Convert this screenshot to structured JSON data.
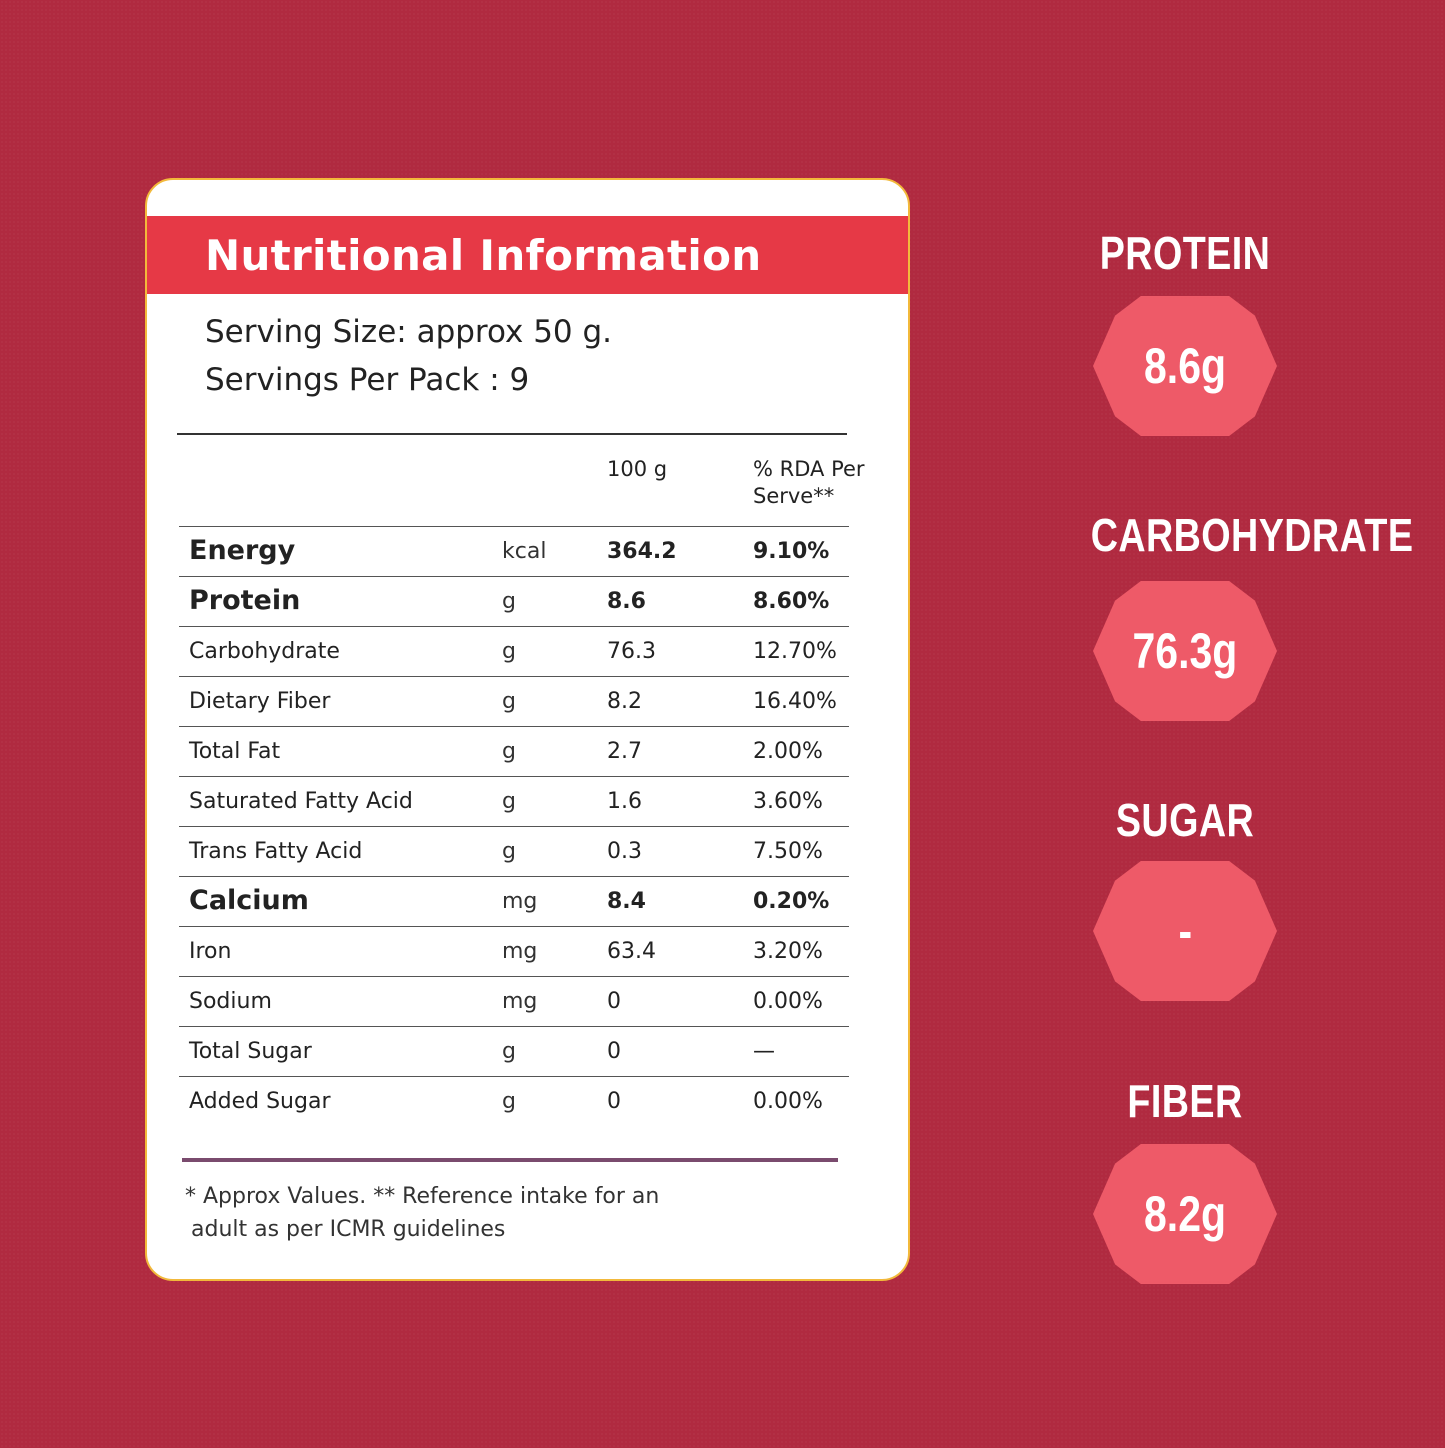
{
  "card": {
    "title": "Nutritional Information",
    "serving_size": "Serving Size: approx 50 g.",
    "servings_per_pack": "Servings Per Pack : 9",
    "col_per_100": "100 g",
    "col_rda_line1": "% RDA Per",
    "col_rda_line2": "Serve**",
    "rows": [
      {
        "name": "Energy",
        "unit": "kcal",
        "value": "364.2",
        "rda": "9.10%"
      },
      {
        "name": "Protein",
        "unit": "g",
        "value": "8.6",
        "rda": "8.60%"
      },
      {
        "name": "Carbohydrate",
        "unit": "g",
        "value": "76.3",
        "rda": "12.70%"
      },
      {
        "name": "Dietary Fiber",
        "unit": "g",
        "value": "8.2",
        "rda": "16.40%"
      },
      {
        "name": "Total Fat",
        "unit": "g",
        "value": "2.7",
        "rda": "2.00%"
      },
      {
        "name": "Saturated Fatty Acid",
        "unit": "g",
        "value": "1.6",
        "rda": "3.60%"
      },
      {
        "name": "Trans Fatty Acid",
        "unit": "g",
        "value": "0.3",
        "rda": "7.50%"
      },
      {
        "name": "Calcium",
        "unit": "mg",
        "value": "8.4",
        "rda": "0.20%"
      },
      {
        "name": "Iron",
        "unit": "mg",
        "value": "63.4",
        "rda": "3.20%"
      },
      {
        "name": "Sodium",
        "unit": "mg",
        "value": "0",
        "rda": "0.00%"
      },
      {
        "name": "Total Sugar",
        "unit": "g",
        "value": "0",
        "rda": "—"
      },
      {
        "name": "Added Sugar",
        "unit": "g",
        "value": "0",
        "rda": "0.00%"
      }
    ],
    "footnote_line1": "* Approx Values. ** Reference intake for an",
    "footnote_line2": "adult as per ICMR guidelines"
  },
  "highlights": [
    {
      "label": "PROTEIN",
      "value": "8.6g"
    },
    {
      "label": "CARBOHYDRATE",
      "value": "76.3g"
    },
    {
      "label": "SUGAR",
      "value": "-"
    },
    {
      "label": "FIBER",
      "value": "8.2g"
    }
  ],
  "colors": {
    "background": "#b02a40",
    "header": "#e63946",
    "card_border": "#f2b93b",
    "badge": "#ee5a68"
  }
}
